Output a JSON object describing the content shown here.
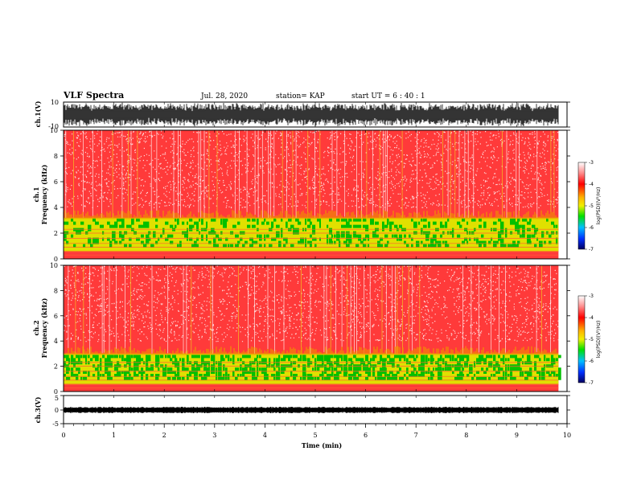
{
  "header": {
    "title": "VLF Spectra",
    "date": "Jul. 28, 2020",
    "station": "station= KAP",
    "start": "start UT = 6 : 40 : 1"
  },
  "colors": {
    "trace": "#000000",
    "spec_low": "#00c000",
    "spec_mid": "#e0e000",
    "spec_high": "#ff0000",
    "spec_bg": "#ff4040"
  },
  "chart_data": [
    {
      "type": "line",
      "name": "ch1",
      "ylabel": "ch.1(V)",
      "ylim": [
        -10,
        10
      ],
      "yticks": [
        "10",
        "-10"
      ],
      "description_only": false
    },
    {
      "type": "heatmap",
      "name": "ch1-spectrogram",
      "ylabel": "ch.1\nFrequency (kHz)",
      "ylabel_line1": "ch.1",
      "ylabel_line2": "Frequency (kHz)",
      "ylim": [
        0,
        10
      ],
      "yticks": [
        "0",
        "2",
        "4",
        "6",
        "8",
        "10"
      ],
      "colorbar": {
        "label": "log(PSD)(V²/Hz)",
        "ticks": [
          "-3",
          "-4",
          "-5",
          "-6",
          "-7"
        ],
        "range": [
          -7,
          -3
        ]
      },
      "band_green_top_khz": 3.2
    },
    {
      "type": "heatmap",
      "name": "ch2-spectrogram",
      "ylabel_line1": "ch.2",
      "ylabel_line2": "Frequency (kHz)",
      "ylim": [
        0,
        10
      ],
      "yticks": [
        "0",
        "2",
        "4",
        "6",
        "8",
        "10"
      ],
      "colorbar": {
        "label": "log(PSD)(V²/Hz)",
        "ticks": [
          "-3",
          "-4",
          "-5",
          "-6",
          "-7"
        ],
        "range": [
          -7,
          -3
        ]
      },
      "band_green_top_khz": 3.0
    },
    {
      "type": "line",
      "name": "ch3",
      "ylabel": "ch.3(V)",
      "ylim": [
        -5,
        5
      ],
      "yticks": [
        "5",
        "0",
        "-5"
      ]
    }
  ],
  "xaxis": {
    "label": "Time (min)",
    "range": [
      0,
      10
    ],
    "ticks": [
      "0",
      "1",
      "2",
      "3",
      "4",
      "5",
      "6",
      "7",
      "8",
      "9",
      "10"
    ],
    "data_end_min": 9.83
  }
}
